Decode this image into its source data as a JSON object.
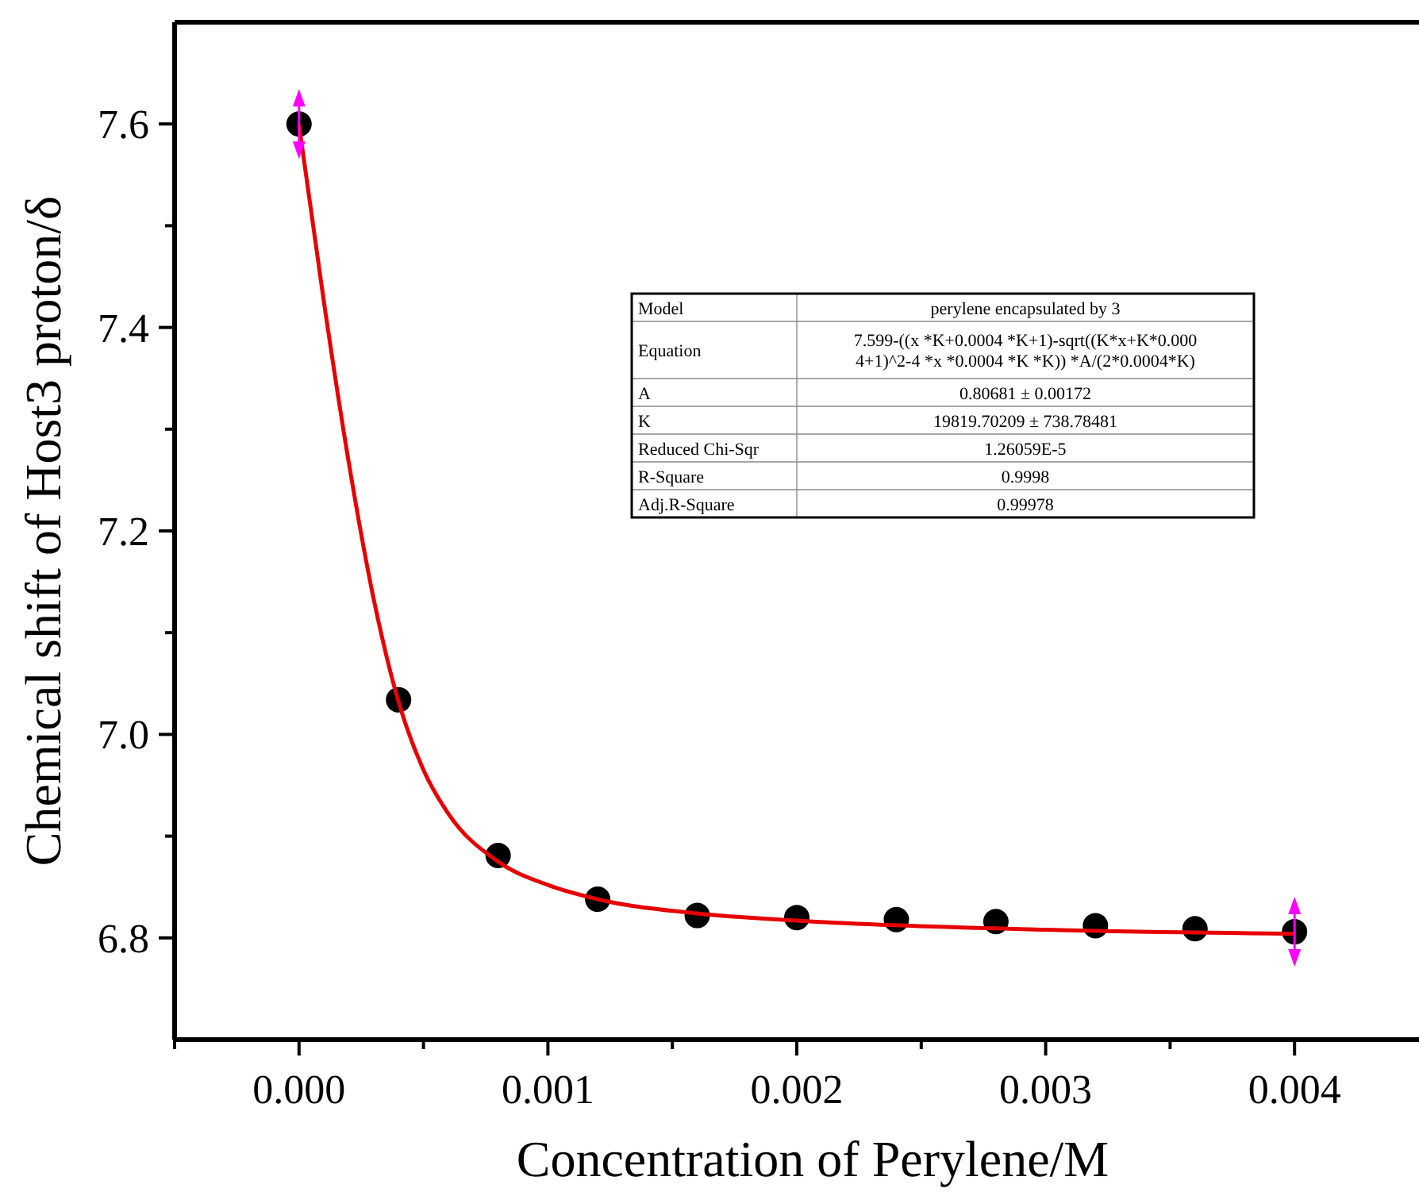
{
  "chart_data": {
    "type": "scatter",
    "xlabel": "Concentration of Perylene/M",
    "ylabel": "Chemical shift of Host3 proton/δ",
    "xlim": [
      -0.0005,
      0.0045
    ],
    "ylim": [
      6.7,
      7.7
    ],
    "xticks": [
      {
        "value": -0.0005,
        "label": null
      },
      {
        "value": 0,
        "label": "0.000"
      },
      {
        "value": 0.0005,
        "label": null
      },
      {
        "value": 0.001,
        "label": "0.001"
      },
      {
        "value": 0.0015,
        "label": null
      },
      {
        "value": 0.002,
        "label": "0.002"
      },
      {
        "value": 0.0025,
        "label": null
      },
      {
        "value": 0.003,
        "label": "0.003"
      },
      {
        "value": 0.0035,
        "label": null
      },
      {
        "value": 0.004,
        "label": "0.004"
      }
    ],
    "yticks": [
      6.8,
      {
        "value": 6.9,
        "label": null
      },
      {
        "value": 7,
        "label": "7.0"
      },
      {
        "value": 7.1,
        "label": null
      },
      7.2,
      {
        "value": 7.3,
        "label": null
      },
      7.4,
      {
        "value": 7.5,
        "label": null
      },
      7.6
    ],
    "grid": false,
    "series": [
      {
        "color": "#000000",
        "marker": "circle",
        "x": [
          0,
          0.0004,
          0.0008,
          0.0012,
          0.0016,
          0.002,
          0.0024,
          0.0028,
          0.0032,
          0.0036,
          0.004
        ],
        "values": [
          7.6,
          7.034,
          6.881,
          6.838,
          6.822,
          6.82,
          6.818,
          6.816,
          6.812,
          6.809,
          6.806
        ]
      },
      {
        "type": "line",
        "color": "#e60000",
        "line_style": "solid",
        "x": [
          0,
          0.0001,
          0.0002,
          0.0003,
          0.0004,
          0.0005,
          0.0006,
          0.0008,
          0.001,
          0.0012,
          0.0016,
          0.002,
          0.003,
          0.004
        ],
        "values": [
          7.599,
          7.425,
          7.267,
          7.133,
          7.032,
          6.965,
          6.922,
          6.875,
          6.852,
          6.838,
          6.824,
          6.817,
          6.808,
          6.804
        ]
      }
    ],
    "annotations": [
      "Model",
      "perylene encapsulated by 3",
      "Equation",
      "7.599-((x *K+0.0004 *K+1)-sqrt((K*x+K*0.0004+1)^2-4 *x *0.0004 *K *K)) *A/(2*0.0004*K)",
      "A",
      "0.80681 ± 0.00172",
      "K",
      "19819.70209 ± 738.78481",
      "Reduced Chi-Sqr",
      "1.26059E-5",
      "R-Square",
      "0.9998",
      "Adj.R-Square",
      "0.99978"
    ]
  }
}
